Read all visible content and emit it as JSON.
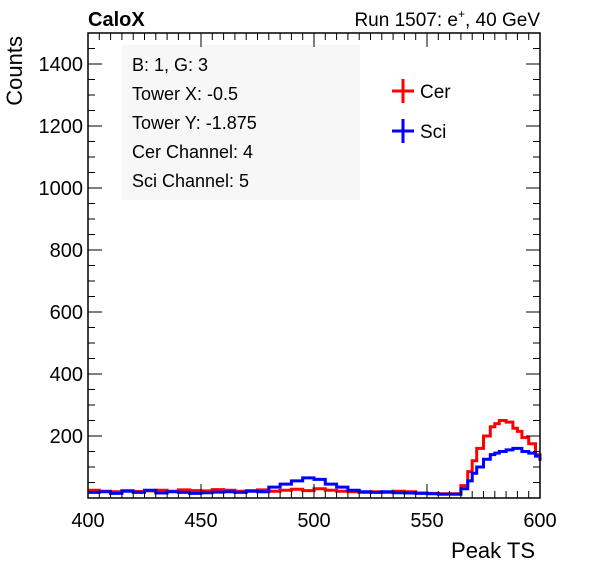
{
  "header": {
    "left": "CaloX",
    "right_prefix": "Run 1507: e",
    "right_sup": "+",
    "right_suffix": ", 40 GeV"
  },
  "info_box": {
    "lines": [
      "B: 1, G: 3",
      "Tower X: -0.5",
      "Tower Y: -1.875",
      "Cer Channel: 4",
      "Sci Channel: 5"
    ]
  },
  "chart_data": {
    "type": "line",
    "xlabel": "Peak TS",
    "ylabel": "Counts",
    "xlim": [
      400,
      600
    ],
    "ylim": [
      0,
      1500
    ],
    "xticks": [
      400,
      450,
      500,
      550,
      600
    ],
    "yticks": [
      200,
      400,
      600,
      800,
      1000,
      1200,
      1400
    ],
    "legend_position": "top-right",
    "grid": false,
    "x": [
      400,
      405,
      410,
      415,
      420,
      425,
      430,
      435,
      440,
      445,
      450,
      455,
      460,
      465,
      470,
      475,
      480,
      485,
      490,
      495,
      500,
      505,
      510,
      515,
      520,
      525,
      530,
      535,
      540,
      545,
      550,
      555,
      560,
      565,
      568,
      570,
      572,
      575,
      578,
      580,
      582,
      585,
      588,
      590,
      592,
      595,
      598,
      600
    ],
    "series": [
      {
        "name": "Cer",
        "color": "#ff0000",
        "values": [
          25,
          22,
          20,
          24,
          21,
          23,
          25,
          22,
          26,
          24,
          23,
          27,
          25,
          22,
          24,
          26,
          22,
          25,
          28,
          24,
          30,
          25,
          22,
          20,
          18,
          20,
          18,
          22,
          20,
          16,
          15,
          14,
          14,
          40,
          85,
          120,
          160,
          200,
          230,
          240,
          250,
          245,
          225,
          215,
          195,
          175,
          140,
          120
        ]
      },
      {
        "name": "Sci",
        "color": "#0000ff",
        "values": [
          18,
          20,
          15,
          22,
          18,
          25,
          16,
          20,
          18,
          15,
          17,
          19,
          20,
          18,
          22,
          20,
          35,
          45,
          55,
          65,
          60,
          45,
          35,
          25,
          20,
          18,
          20,
          17,
          16,
          15,
          14,
          12,
          12,
          30,
          55,
          80,
          100,
          125,
          140,
          145,
          150,
          155,
          160,
          160,
          150,
          145,
          135,
          120
        ]
      }
    ]
  }
}
